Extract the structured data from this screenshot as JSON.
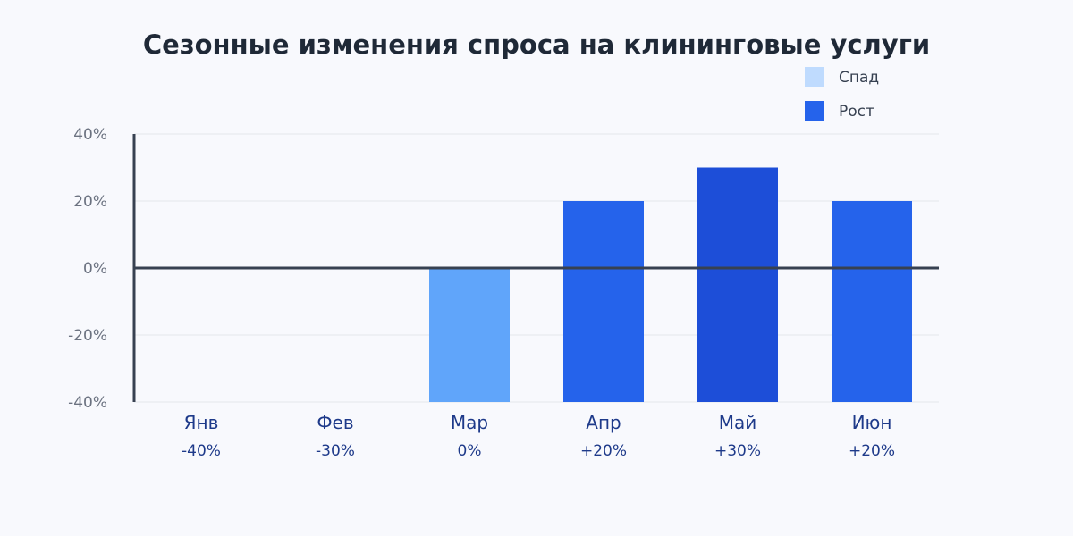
{
  "chart_data": {
    "type": "bar",
    "title": "Сезонные изменения спроса на клининговые услуги",
    "categories": [
      "Янв",
      "Фев",
      "Мар",
      "Апр",
      "Май",
      "Июн"
    ],
    "values": [
      -40,
      -30,
      0,
      20,
      30,
      20
    ],
    "value_labels": [
      "-40%",
      "-30%",
      "0%",
      "+20%",
      "+30%",
      "+20%"
    ],
    "y_ticks": [
      40,
      20,
      0,
      -20,
      -40
    ],
    "y_tick_labels": [
      "40%",
      "20%",
      "0%",
      "-20%",
      "-40%"
    ],
    "ylim": [
      -40,
      40
    ],
    "grid": true,
    "legend_position": "top-right",
    "legend": [
      {
        "label": "Спад",
        "color": "#bfdbfe"
      },
      {
        "label": "Рост",
        "color": "#2563eb"
      }
    ],
    "bar_colors": [
      "#bfdbfe",
      "#bfdbfe",
      "#60a5fa",
      "#2563eb",
      "#1d4ed8",
      "#2563eb"
    ]
  }
}
